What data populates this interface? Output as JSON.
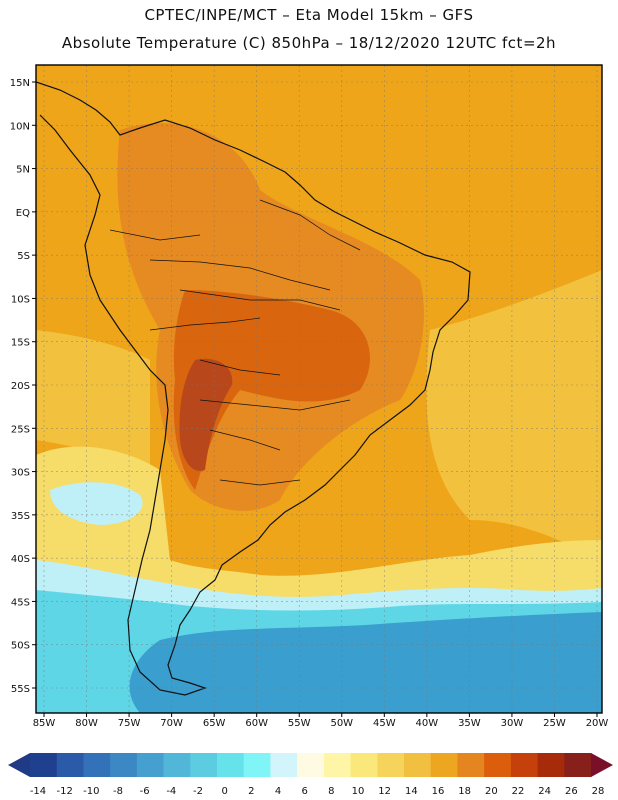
{
  "title": {
    "line1": "CPTEC/INPE/MCT –  Eta Model 15km – GFS",
    "line2": "Absolute Temperature (C) 850hPa – 18/12/2020 12UTC fct=2h"
  },
  "map": {
    "lat_labels": [
      "15N",
      "10N",
      "5N",
      "EQ",
      "5S",
      "10S",
      "15S",
      "20S",
      "25S",
      "30S",
      "35S",
      "40S",
      "45S",
      "50S",
      "55S"
    ],
    "lon_labels": [
      "85W",
      "80W",
      "75W",
      "70W",
      "65W",
      "60W",
      "55W",
      "50W",
      "45W",
      "40W",
      "35W",
      "30W",
      "25W",
      "20W"
    ]
  },
  "colorbar": {
    "labels": [
      "-14",
      "-12",
      "-10",
      "-8",
      "-6",
      "-4",
      "-2",
      "0",
      "2",
      "4",
      "6",
      "8",
      "10",
      "12",
      "14",
      "16",
      "18",
      "20",
      "22",
      "24",
      "26",
      "28"
    ],
    "colors": [
      "#1f3f8f",
      "#2a5aa8",
      "#3372b8",
      "#3c88c4",
      "#46a0cf",
      "#52b6d9",
      "#5ccce0",
      "#66e2ea",
      "#7ff5f8",
      "#d2f4fb",
      "#fffbe2",
      "#fff5a6",
      "#fbe87a",
      "#f6d45c",
      "#f1c040",
      "#eca620",
      "#e58520",
      "#dc5e0c",
      "#c5400a",
      "#a72a0b",
      "#87201a"
    ],
    "low_color": "#203a86",
    "high_color": "#7a0f2a"
  },
  "palette": {
    "bg_ocean": "#efa51a",
    "deep_cold": "#3a9fce",
    "cyan": "#5ed6e6",
    "light_cyan": "#bff0f8",
    "cream": "#fbf5dc",
    "yellow": "#f6dc68",
    "gold": "#f2c23e",
    "orange": "#e68a22",
    "dark_orange": "#d9650e",
    "brown": "#b8481c",
    "coast": "#111111"
  }
}
